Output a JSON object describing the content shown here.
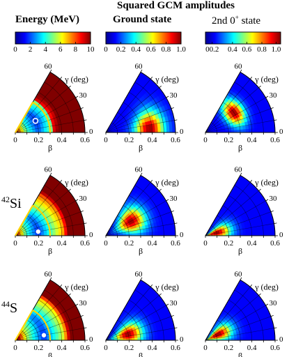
{
  "figure": {
    "top_title": "Squared GCM amplitudes",
    "col1_title": "Energy (MeV)",
    "col2_title": "Ground state",
    "col3_title_main": "2nd 0",
    "col3_title_sup": "+",
    "col3_title_tail": " state"
  },
  "colorbars": [
    {
      "ticks": [
        "0",
        "2",
        "4",
        "6",
        "8",
        "10"
      ]
    },
    {
      "ticks": [
        "0",
        "0.2",
        "0.4",
        "0.6",
        "0.8",
        "1.0"
      ]
    },
    {
      "ticks": [
        "00.2",
        "0.4",
        "0.6",
        "0.8",
        "1.0"
      ]
    }
  ],
  "axes": {
    "beta_label": "β",
    "gamma_label": "γ (deg)",
    "beta_ticks": [
      "0",
      "0.2",
      "0.4",
      "0.6"
    ],
    "gamma_ticks": [
      "0",
      "30",
      "60"
    ]
  },
  "rows": [
    {
      "mass": "",
      "element": ""
    },
    {
      "mass": "42",
      "element": "Si"
    },
    {
      "mass": "44",
      "element": "S"
    }
  ],
  "chart_data": [
    {
      "type": "heatmap",
      "description_free": true,
      "coordinate_system": "polar (beta, gamma)",
      "beta_range": [
        0,
        0.6
      ],
      "gamma_range": [
        0,
        60
      ],
      "colormap": "jet",
      "panels": [
        {
          "row": 1,
          "col": 1,
          "quantity": "energy",
          "unit": "MeV",
          "range": [
            0,
            10
          ],
          "yellow_contour_beta": 0.3,
          "min_marker": {
            "beta": 0.2,
            "gamma": 30
          },
          "min_marker_hollow": true
        },
        {
          "row": 1,
          "col": 2,
          "quantity": "ground state",
          "peak": {
            "beta": 0.38,
            "gamma": 5
          }
        },
        {
          "row": 1,
          "col": 3,
          "quantity": "2nd 0+ state",
          "peak": {
            "beta": 0.3,
            "gamma": 35
          }
        },
        {
          "row": 2,
          "col": 1,
          "quantity": "energy",
          "unit": "MeV",
          "range": [
            0,
            10
          ],
          "yellow_contour_beta": 0.3,
          "min_marker": {
            "beta": 0.2,
            "gamma": 10
          }
        },
        {
          "row": 2,
          "col": 2,
          "quantity": "ground state",
          "peak": {
            "beta": 0.25,
            "gamma": 30
          }
        },
        {
          "row": 2,
          "col": 3,
          "quantity": "2nd 0+ state",
          "peak": {
            "beta": 0.1,
            "gamma": 15
          }
        },
        {
          "row": 3,
          "col": 1,
          "quantity": "energy",
          "unit": "MeV",
          "range": [
            0,
            10
          ],
          "yellow_contour_beta": 0.3,
          "min_marker": {
            "beta": 0.25,
            "gamma": 10
          }
        },
        {
          "row": 3,
          "col": 2,
          "quantity": "ground state",
          "peak": {
            "beta": 0.2,
            "gamma": 15
          }
        },
        {
          "row": 3,
          "col": 3,
          "quantity": "2nd 0+ state",
          "peak": {
            "beta": 0.12,
            "gamma": 25
          }
        }
      ]
    }
  ]
}
